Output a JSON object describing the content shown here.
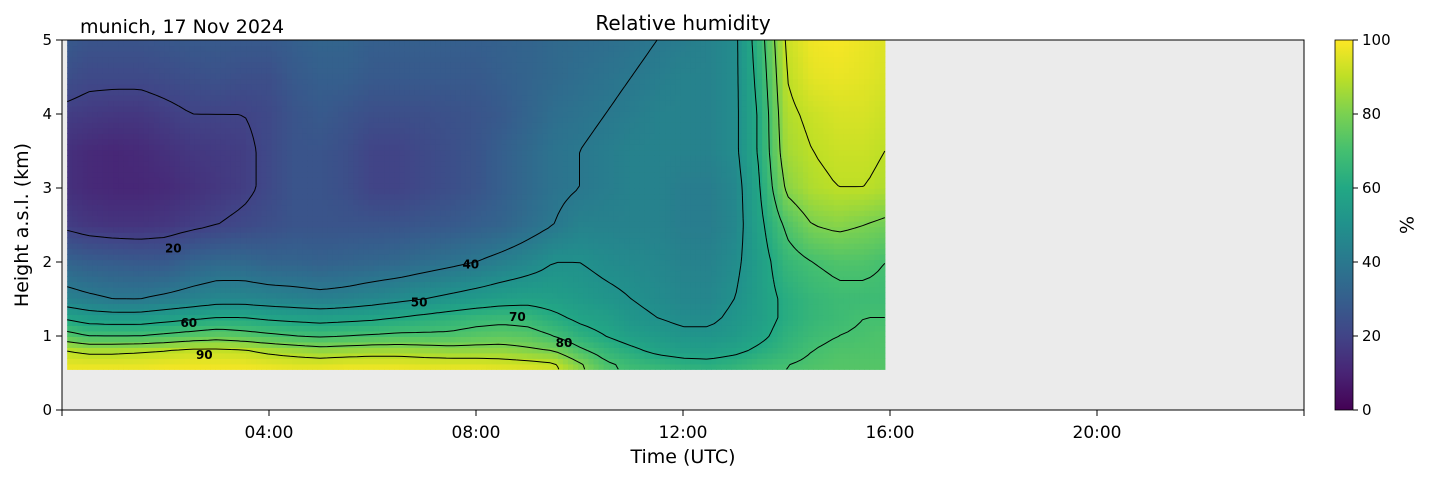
{
  "chart_data": {
    "type": "heatmap",
    "title": "Relative humidity",
    "subtitle": "munich, 17 Nov 2024",
    "xlabel": "Time (UTC)",
    "ylabel": "Height a.s.l. (km)",
    "x_units": "hours UTC",
    "xlim": [
      0,
      24
    ],
    "ylim": [
      0,
      5
    ],
    "x_ticks": [
      0,
      4,
      8,
      12,
      16,
      20,
      24
    ],
    "x_tick_labels": [
      "",
      "04:00",
      "08:00",
      "12:00",
      "16:00",
      "20:00",
      ""
    ],
    "y_ticks": [
      0,
      1,
      2,
      3,
      4,
      5
    ],
    "y_tick_labels": [
      "0",
      "1",
      "2",
      "3",
      "4",
      "5"
    ],
    "data_extent": {
      "x": [
        0.1,
        15.9
      ],
      "y": [
        0.55,
        5.0
      ]
    },
    "colorbar": {
      "label": "%",
      "range": [
        0,
        100
      ],
      "ticks": [
        0,
        20,
        40,
        60,
        80,
        100
      ],
      "tick_labels": [
        "0",
        "20",
        "40",
        "60",
        "80",
        "100"
      ],
      "colormap": "viridis"
    },
    "contour_levels": [
      20,
      40,
      50,
      60,
      70,
      80,
      90
    ],
    "contour_labels": [
      {
        "text": "20",
        "x": 2.15,
        "y": 2.13
      },
      {
        "text": "40",
        "x": 7.9,
        "y": 1.91
      },
      {
        "text": "50",
        "x": 6.9,
        "y": 1.4
      },
      {
        "text": "60",
        "x": 2.45,
        "y": 1.12
      },
      {
        "text": "70",
        "x": 8.8,
        "y": 1.2
      },
      {
        "text": "80",
        "x": 9.7,
        "y": 0.85
      },
      {
        "text": "90",
        "x": 2.75,
        "y": 0.69
      }
    ],
    "time_points": [
      0.1,
      0.5,
      1,
      1.5,
      2,
      2.5,
      3,
      3.5,
      4,
      4.5,
      5,
      5.5,
      6,
      6.5,
      7,
      7.5,
      8,
      8.5,
      9,
      9.5,
      10,
      10.5,
      11,
      11.5,
      12,
      12.5,
      13,
      13.5,
      14,
      14.5,
      15,
      15.5,
      15.9
    ],
    "height_km": [
      0.6,
      0.8,
      1.0,
      1.25,
      1.5,
      2.0,
      2.5,
      3.0,
      3.5,
      4.0,
      4.5,
      5.0
    ],
    "rh_percent": [
      [
        97,
        97,
        97,
        97,
        98,
        98,
        98,
        98,
        97,
        96,
        96,
        97,
        97,
        97,
        96,
        96,
        96,
        95,
        94,
        92,
        82,
        72,
        68,
        66,
        64,
        63,
        65,
        68,
        70,
        72,
        73,
        73,
        73
      ],
      [
        90,
        88,
        88,
        89,
        90,
        92,
        92,
        91,
        88,
        86,
        84,
        85,
        86,
        86,
        85,
        84,
        84,
        84,
        82,
        80,
        72,
        66,
        62,
        58,
        56,
        56,
        58,
        62,
        66,
        70,
        72,
        72,
        72
      ],
      [
        74,
        70,
        70,
        70,
        72,
        74,
        76,
        74,
        72,
        70,
        69,
        70,
        71,
        72,
        72,
        72,
        74,
        75,
        74,
        70,
        64,
        60,
        56,
        54,
        52,
        52,
        54,
        58,
        64,
        68,
        70,
        71,
        72
      ],
      [
        58,
        55,
        54,
        54,
        56,
        58,
        60,
        60,
        58,
        57,
        56,
        57,
        58,
        60,
        62,
        64,
        66,
        67,
        66,
        62,
        58,
        56,
        52,
        50,
        48,
        48,
        52,
        56,
        62,
        66,
        68,
        70,
        70
      ],
      [
        44,
        42,
        40,
        40,
        42,
        44,
        46,
        46,
        45,
        44,
        43,
        44,
        46,
        48,
        50,
        52,
        54,
        56,
        57,
        56,
        54,
        52,
        50,
        48,
        46,
        46,
        50,
        56,
        62,
        66,
        68,
        68,
        68
      ],
      [
        32,
        30,
        29,
        28,
        28,
        32,
        34,
        34,
        32,
        32,
        31,
        32,
        33,
        34,
        36,
        38,
        40,
        43,
        46,
        50,
        50,
        48,
        47,
        46,
        44,
        44,
        48,
        56,
        66,
        70,
        72,
        72,
        70
      ],
      [
        18,
        16,
        15,
        15,
        16,
        18,
        20,
        22,
        24,
        26,
        26,
        26,
        26,
        26,
        27,
        28,
        30,
        32,
        36,
        40,
        44,
        44,
        44,
        44,
        42,
        42,
        46,
        58,
        72,
        80,
        82,
        80,
        78
      ],
      [
        14,
        12,
        11,
        11,
        12,
        14,
        16,
        18,
        22,
        26,
        26,
        24,
        20,
        20,
        22,
        24,
        26,
        30,
        34,
        38,
        40,
        42,
        44,
        44,
        42,
        42,
        46,
        60,
        82,
        88,
        90,
        90,
        88
      ],
      [
        14,
        12,
        11,
        12,
        14,
        16,
        17,
        18,
        22,
        26,
        26,
        24,
        20,
        20,
        22,
        24,
        26,
        30,
        34,
        38,
        40,
        42,
        44,
        44,
        44,
        44,
        48,
        62,
        86,
        90,
        92,
        92,
        90
      ],
      [
        18,
        17,
        16,
        16,
        18,
        20,
        20,
        20,
        22,
        26,
        28,
        26,
        24,
        24,
        24,
        25,
        26,
        28,
        32,
        36,
        38,
        40,
        42,
        44,
        44,
        44,
        48,
        62,
        88,
        92,
        94,
        94,
        92
      ],
      [
        24,
        22,
        22,
        22,
        23,
        24,
        25,
        24,
        24,
        28,
        30,
        30,
        28,
        28,
        28,
        28,
        28,
        30,
        32,
        34,
        36,
        38,
        40,
        42,
        44,
        44,
        48,
        64,
        90,
        96,
        97,
        96,
        94
      ],
      [
        28,
        26,
        26,
        26,
        27,
        28,
        28,
        28,
        28,
        30,
        32,
        32,
        30,
        30,
        30,
        30,
        30,
        31,
        32,
        34,
        35,
        36,
        38,
        40,
        42,
        44,
        48,
        66,
        92,
        98,
        99,
        97,
        95
      ]
    ]
  }
}
